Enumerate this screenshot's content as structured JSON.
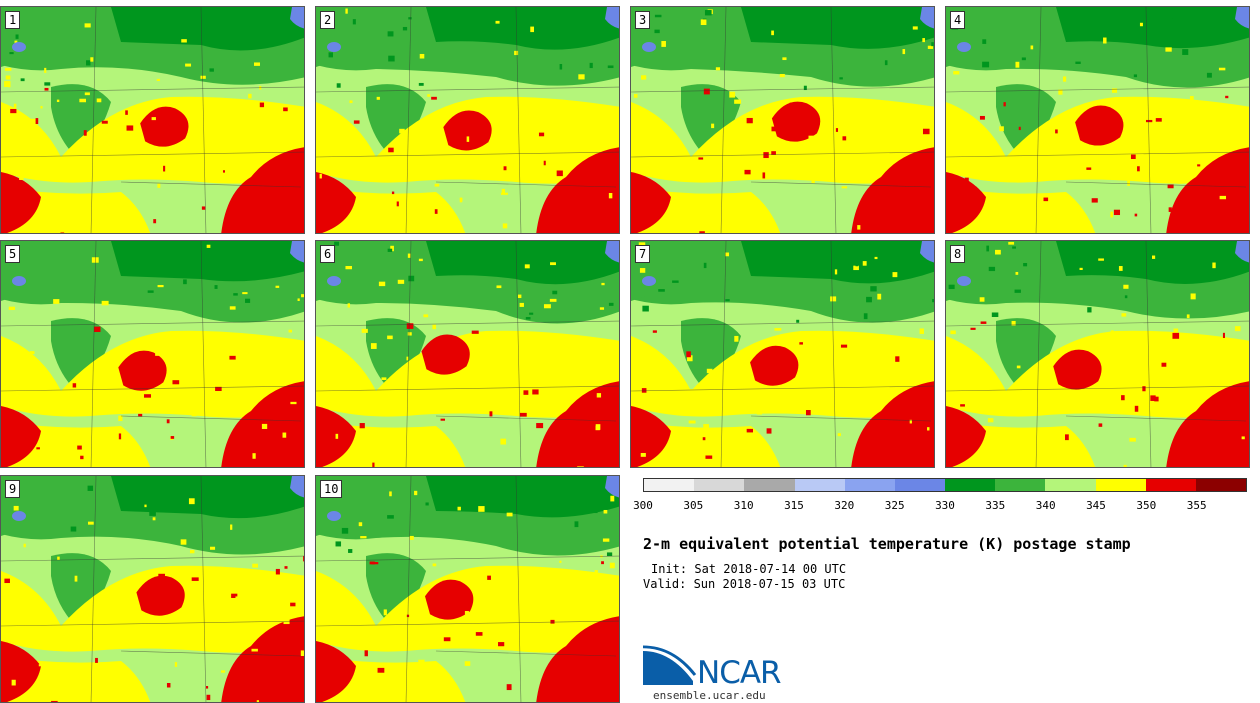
{
  "members": [
    "1",
    "2",
    "3",
    "4",
    "5",
    "6",
    "7",
    "8",
    "9",
    "10"
  ],
  "colorbar": {
    "ticks": [
      "300",
      "305",
      "310",
      "315",
      "320",
      "325",
      "330",
      "335",
      "340",
      "345",
      "350",
      "355"
    ],
    "colors": [
      "#f2f2f2",
      "#d8d8d8",
      "#a9a9a9",
      "#b9c9f5",
      "#8aa3f0",
      "#6b86e6",
      "#00961e",
      "#3cb43c",
      "#b4f57a",
      "#ffff00",
      "#e60000",
      "#8c0000"
    ]
  },
  "title": "2-m equivalent potential temperature (K) postage stamp",
  "init": "Init: Sat 2018-07-14 00 UTC",
  "valid": "Valid: Sun 2018-07-15 03 UTC",
  "logo": {
    "text": "NCAR",
    "site": "ensemble.ucar.edu"
  },
  "map_colors": {
    "dark_green": "#00961e",
    "mid_green": "#3cb43c",
    "light_green": "#b4f57a",
    "yellow": "#ffff00",
    "red": "#e60000",
    "water": "#6b86e6"
  }
}
